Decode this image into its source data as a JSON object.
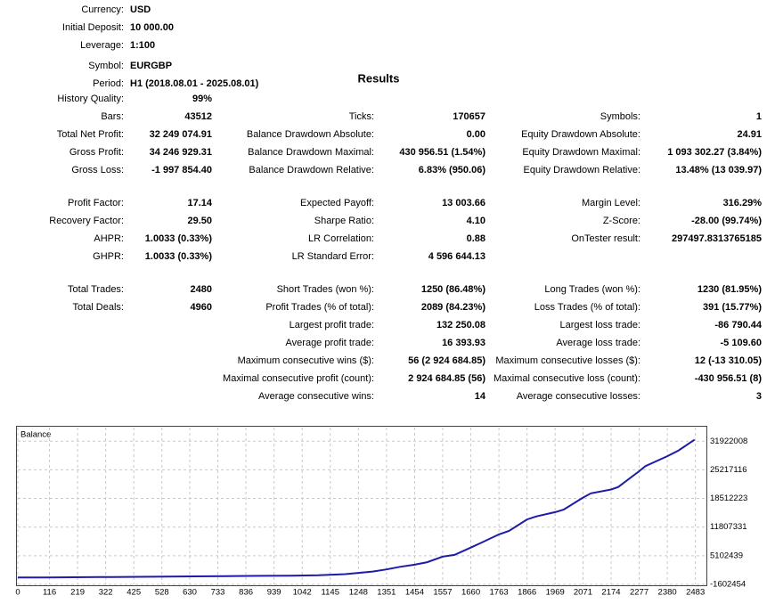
{
  "header": {
    "fields": [
      {
        "label": "Currency:",
        "value": "USD"
      },
      {
        "label": "Initial Deposit:",
        "value": "10 000.00"
      },
      {
        "label": "Leverage:",
        "value": "1:100"
      },
      {
        "label": "Symbol:",
        "value": "EURGBP"
      },
      {
        "label": "Period:",
        "value": "H1 (2018.08.01 - 2025.08.01)"
      }
    ]
  },
  "results": {
    "title": "Results",
    "groups": [
      [
        [
          {
            "label": "History Quality:",
            "value": "99%"
          },
          null,
          null
        ],
        [
          {
            "label": "Bars:",
            "value": "43512"
          },
          {
            "label": "Ticks:",
            "value": "170657"
          },
          {
            "label": "Symbols:",
            "value": "1"
          }
        ],
        [
          {
            "label": "Total Net Profit:",
            "value": "32 249 074.91"
          },
          {
            "label": "Balance Drawdown Absolute:",
            "value": "0.00"
          },
          {
            "label": "Equity Drawdown Absolute:",
            "value": "24.91"
          }
        ],
        [
          {
            "label": "Gross Profit:",
            "value": "34 246 929.31"
          },
          {
            "label": "Balance Drawdown Maximal:",
            "value": "430 956.51 (1.54%)"
          },
          {
            "label": "Equity Drawdown Maximal:",
            "value": "1 093 302.27 (3.84%)"
          }
        ],
        [
          {
            "label": "Gross Loss:",
            "value": "-1 997 854.40"
          },
          {
            "label": "Balance Drawdown Relative:",
            "value": "6.83% (950.06)"
          },
          {
            "label": "Equity Drawdown Relative:",
            "value": "13.48% (13 039.97)"
          }
        ]
      ],
      [
        [
          {
            "label": "Profit Factor:",
            "value": "17.14"
          },
          {
            "label": "Expected Payoff:",
            "value": "13 003.66"
          },
          {
            "label": "Margin Level:",
            "value": "316.29%"
          }
        ],
        [
          {
            "label": "Recovery Factor:",
            "value": "29.50"
          },
          {
            "label": "Sharpe Ratio:",
            "value": "4.10"
          },
          {
            "label": "Z-Score:",
            "value": "-28.00 (99.74%)"
          }
        ],
        [
          {
            "label": "AHPR:",
            "value": "1.0033 (0.33%)"
          },
          {
            "label": "LR Correlation:",
            "value": "0.88"
          },
          {
            "label": "OnTester result:",
            "value": "297497.8313765185"
          }
        ],
        [
          {
            "label": "GHPR:",
            "value": "1.0033 (0.33%)"
          },
          {
            "label": "LR Standard Error:",
            "value": "4 596 644.13"
          },
          null
        ]
      ],
      [
        [
          {
            "label": "Total Trades:",
            "value": "2480"
          },
          {
            "label": "Short Trades (won %):",
            "value": "1250 (86.48%)"
          },
          {
            "label": "Long Trades (won %):",
            "value": "1230 (81.95%)"
          }
        ],
        [
          {
            "label": "Total Deals:",
            "value": "4960"
          },
          {
            "label": "Profit Trades (% of total):",
            "value": "2089 (84.23%)"
          },
          {
            "label": "Loss Trades (% of total):",
            "value": "391 (15.77%)"
          }
        ],
        [
          null,
          {
            "label": "Largest profit trade:",
            "value": "132 250.08"
          },
          {
            "label": "Largest loss trade:",
            "value": "-86 790.44"
          }
        ],
        [
          null,
          {
            "label": "Average profit trade:",
            "value": "16 393.93"
          },
          {
            "label": "Average loss trade:",
            "value": "-5 109.60"
          }
        ],
        [
          null,
          {
            "label": "Maximum consecutive wins ($):",
            "value": "56 (2 924 684.85)"
          },
          {
            "label": "Maximum consecutive losses ($):",
            "value": "12 (-13 310.05)"
          }
        ],
        [
          null,
          {
            "label": "Maximal consecutive profit (count):",
            "value": "2 924 684.85 (56)"
          },
          {
            "label": "Maximal consecutive loss (count):",
            "value": "-430 956.51 (8)"
          }
        ],
        [
          null,
          {
            "label": "Average consecutive wins:",
            "value": "14"
          },
          {
            "label": "Average consecutive losses:",
            "value": "3"
          }
        ]
      ]
    ]
  },
  "chart_data": {
    "type": "line",
    "title": "Balance",
    "x": [
      0,
      100,
      200,
      300,
      400,
      500,
      600,
      700,
      800,
      900,
      1000,
      1100,
      1200,
      1300,
      1351,
      1400,
      1454,
      1500,
      1557,
      1600,
      1660,
      1700,
      1763,
      1800,
      1866,
      1900,
      1969,
      2000,
      2071,
      2100,
      2174,
      2200,
      2277,
      2300,
      2380,
      2420,
      2480
    ],
    "series": [
      {
        "name": "Balance",
        "color": "#1c1ca8",
        "values": [
          10000,
          30000,
          60000,
          100000,
          150000,
          200000,
          250000,
          300000,
          350000,
          400000,
          450000,
          550000,
          800000,
          1400000,
          1900000,
          2500000,
          3000000,
          3600000,
          4900000,
          5300000,
          7000000,
          8200000,
          10100000,
          10900000,
          13600000,
          14300000,
          15300000,
          15900000,
          18700000,
          19700000,
          20600000,
          21200000,
          24900000,
          26100000,
          28400000,
          29700000,
          32259075
        ]
      }
    ],
    "xlim": [
      0,
      2520
    ],
    "xticks": [
      0,
      116,
      219,
      322,
      425,
      528,
      630,
      733,
      836,
      939,
      1042,
      1145,
      1248,
      1351,
      1454,
      1557,
      1660,
      1763,
      1866,
      1969,
      2071,
      2174,
      2277,
      2380,
      2483
    ],
    "ylim": [
      -1602454,
      35100000
    ],
    "yticks": [
      -1602454,
      5102439,
      11807331,
      18512223,
      25217116,
      31922008
    ],
    "grid": true
  }
}
